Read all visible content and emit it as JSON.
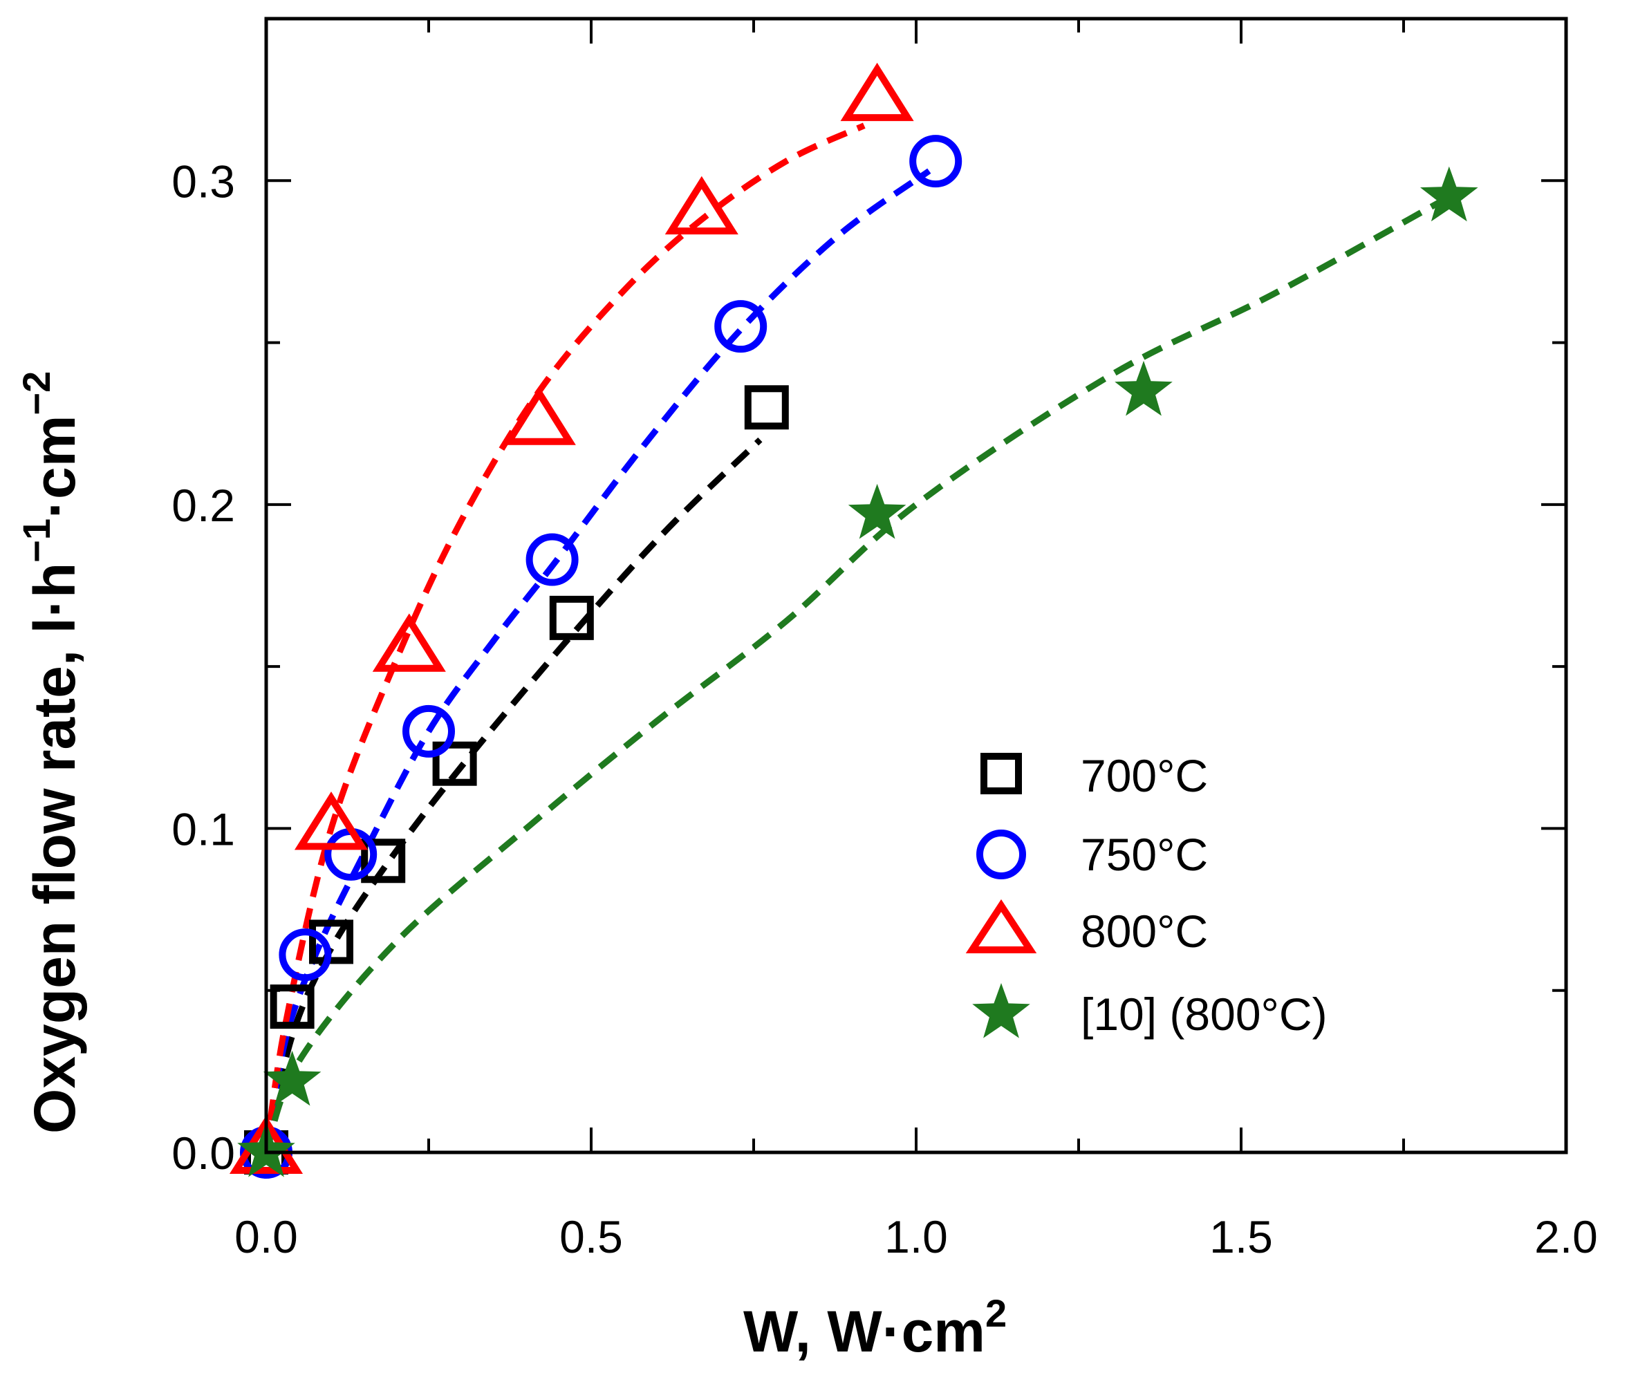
{
  "chart_data": {
    "type": "scatter",
    "xlabel": "W, W·cm",
    "xlabel_sup": "2",
    "ylabel": "Oxygen flow rate, l·h",
    "ylabel_sup1": "−1",
    "ylabel_mid": "·cm",
    "ylabel_sup2": "−2",
    "xlim": [
      0,
      2.0
    ],
    "ylim": [
      0,
      0.35
    ],
    "x_ticks": [
      "0.0",
      "0.5",
      "1.0",
      "1.5",
      "2.0"
    ],
    "y_ticks": [
      "0.0",
      "0.1",
      "0.2",
      "0.3"
    ],
    "legend_position": "bottom-right",
    "grid": false,
    "series": [
      {
        "name": "700°C",
        "marker": "square",
        "color": "#000000",
        "x": [
          0.0,
          0.04,
          0.1,
          0.18,
          0.29,
          0.47,
          0.77
        ],
        "y": [
          0.0,
          0.045,
          0.065,
          0.09,
          0.12,
          0.165,
          0.23
        ],
        "fit": {
          "x": [
            0.0,
            0.04,
            0.1,
            0.2,
            0.32,
            0.48,
            0.62,
            0.76
          ],
          "y": [
            0.0,
            0.036,
            0.063,
            0.093,
            0.124,
            0.162,
            0.193,
            0.22
          ]
        }
      },
      {
        "name": "750°C",
        "marker": "circle",
        "color": "#0000ff",
        "x": [
          0.0,
          0.06,
          0.13,
          0.25,
          0.44,
          0.73,
          1.03
        ],
        "y": [
          0.0,
          0.061,
          0.092,
          0.13,
          0.183,
          0.255,
          0.306
        ],
        "fit": {
          "x": [
            0.0,
            0.03,
            0.08,
            0.15,
            0.25,
            0.35,
            0.44,
            0.58,
            0.73,
            0.88,
            1.02
          ],
          "y": [
            0.0,
            0.035,
            0.063,
            0.092,
            0.13,
            0.158,
            0.181,
            0.218,
            0.254,
            0.283,
            0.303
          ]
        }
      },
      {
        "name": "800°C",
        "marker": "triangle",
        "color": "#ff0000",
        "x": [
          0.0,
          0.1,
          0.22,
          0.42,
          0.67,
          0.94
        ],
        "y": [
          0.0,
          0.1,
          0.155,
          0.225,
          0.29,
          0.325
        ],
        "fit": {
          "x": [
            0.0,
            0.03,
            0.1,
            0.2,
            0.3,
            0.42,
            0.55,
            0.67,
            0.8,
            0.92
          ],
          "y": [
            0.0,
            0.04,
            0.1,
            0.152,
            0.195,
            0.235,
            0.266,
            0.288,
            0.306,
            0.317
          ]
        }
      },
      {
        "name": "[10] (800°C)",
        "marker": "star",
        "color": "#1f7a1f",
        "x": [
          0.0,
          0.04,
          0.94,
          1.35,
          1.82
        ],
        "y": [
          0.0,
          0.022,
          0.197,
          0.235,
          0.295
        ],
        "fit": {
          "x": [
            0.0,
            0.05,
            0.2,
            0.4,
            0.6,
            0.8,
            1.0,
            1.3,
            1.55,
            1.82
          ],
          "y": [
            0.0,
            0.028,
            0.065,
            0.1,
            0.133,
            0.164,
            0.2,
            0.24,
            0.265,
            0.295
          ]
        }
      }
    ]
  }
}
